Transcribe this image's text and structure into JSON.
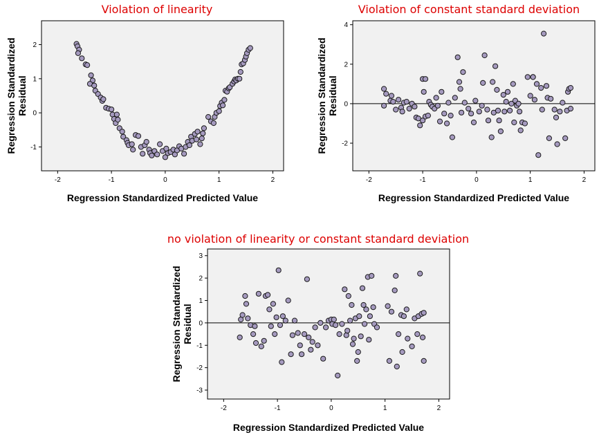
{
  "colors": {
    "title": "#dd0000",
    "marker_fill": "#a59abf",
    "marker_edge": "#1a1a1a",
    "plot_bg": "#f1f1f1"
  },
  "chart_data": [
    {
      "type": "scatter",
      "title": "Violation of linearity",
      "xlabel": "Regression Standardized Predicted Value",
      "ylabel_lines": [
        "Regression Standardized",
        "Residual"
      ],
      "xlim": [
        -2.3,
        2.2
      ],
      "ylim": [
        -1.7,
        2.7
      ],
      "xticks": [
        -2,
        -1,
        0,
        1,
        2
      ],
      "yticks": [
        -1,
        0,
        1,
        2
      ],
      "xtick_labels": [
        "-2",
        "-1",
        "0",
        "1",
        "2"
      ],
      "ytick_labels": [
        "-1",
        "0",
        "1",
        "2"
      ],
      "reference_line_y": null,
      "points": [
        [
          -1.65,
          2.02
        ],
        [
          -1.63,
          1.95
        ],
        [
          -1.6,
          1.85
        ],
        [
          -1.62,
          1.75
        ],
        [
          -1.55,
          1.6
        ],
        [
          -1.48,
          1.42
        ],
        [
          -1.45,
          1.4
        ],
        [
          -1.38,
          1.1
        ],
        [
          -1.35,
          0.95
        ],
        [
          -1.4,
          0.85
        ],
        [
          -1.32,
          0.8
        ],
        [
          -1.3,
          0.65
        ],
        [
          -1.25,
          0.55
        ],
        [
          -1.2,
          0.45
        ],
        [
          -1.17,
          0.35
        ],
        [
          -1.15,
          0.4
        ],
        [
          -1.1,
          0.15
        ],
        [
          -1.05,
          0.12
        ],
        [
          -1.0,
          0.1
        ],
        [
          -0.98,
          -0.05
        ],
        [
          -0.95,
          -0.18
        ],
        [
          -0.92,
          -0.3
        ],
        [
          -0.9,
          -0.05
        ],
        [
          -0.88,
          -0.2
        ],
        [
          -0.85,
          -0.45
        ],
        [
          -0.8,
          -0.55
        ],
        [
          -0.78,
          -0.7
        ],
        [
          -0.72,
          -0.8
        ],
        [
          -0.7,
          -0.88
        ],
        [
          -0.68,
          -0.95
        ],
        [
          -0.62,
          -0.92
        ],
        [
          -0.6,
          -1.08
        ],
        [
          -0.55,
          -0.65
        ],
        [
          -0.5,
          -0.68
        ],
        [
          -0.45,
          -1.0
        ],
        [
          -0.42,
          -1.2
        ],
        [
          -0.38,
          -0.95
        ],
        [
          -0.35,
          -0.85
        ],
        [
          -0.3,
          -1.08
        ],
        [
          -0.28,
          -1.18
        ],
        [
          -0.25,
          -1.25
        ],
        [
          -0.2,
          -1.12
        ],
        [
          -0.15,
          -1.22
        ],
        [
          -0.1,
          -0.92
        ],
        [
          -0.05,
          -1.12
        ],
        [
          0.0,
          -1.3
        ],
        [
          0.02,
          -1.05
        ],
        [
          0.05,
          -1.18
        ],
        [
          0.1,
          -1.15
        ],
        [
          0.15,
          -1.08
        ],
        [
          0.18,
          -1.22
        ],
        [
          0.22,
          -1.1
        ],
        [
          0.26,
          -0.98
        ],
        [
          0.3,
          -1.05
        ],
        [
          0.35,
          -1.2
        ],
        [
          0.38,
          -1.0
        ],
        [
          0.42,
          -0.85
        ],
        [
          0.45,
          -0.95
        ],
        [
          0.48,
          -0.7
        ],
        [
          0.5,
          -0.82
        ],
        [
          0.55,
          -0.62
        ],
        [
          0.58,
          -0.78
        ],
        [
          0.6,
          -0.55
        ],
        [
          0.65,
          -0.92
        ],
        [
          0.68,
          -0.75
        ],
        [
          0.7,
          -0.6
        ],
        [
          0.72,
          -0.45
        ],
        [
          0.8,
          -0.12
        ],
        [
          0.85,
          -0.25
        ],
        [
          0.9,
          -0.3
        ],
        [
          0.92,
          -0.12
        ],
        [
          0.95,
          0.0
        ],
        [
          1.0,
          0.05
        ],
        [
          1.02,
          0.2
        ],
        [
          1.05,
          0.3
        ],
        [
          1.07,
          0.22
        ],
        [
          1.1,
          0.38
        ],
        [
          1.12,
          0.65
        ],
        [
          1.15,
          0.62
        ],
        [
          1.18,
          0.72
        ],
        [
          1.2,
          0.75
        ],
        [
          1.25,
          0.85
        ],
        [
          1.28,
          0.92
        ],
        [
          1.3,
          0.98
        ],
        [
          1.32,
          0.95
        ],
        [
          1.35,
          1.0
        ],
        [
          1.38,
          1.0
        ],
        [
          1.4,
          1.2
        ],
        [
          1.42,
          1.42
        ],
        [
          1.45,
          1.45
        ],
        [
          1.48,
          1.55
        ],
        [
          1.5,
          1.65
        ],
        [
          1.52,
          1.75
        ],
        [
          1.55,
          1.85
        ],
        [
          1.58,
          1.9
        ]
      ]
    },
    {
      "type": "scatter",
      "title": "Violation of constant standard deviation",
      "xlabel": "Regression Standardized Predicted Value",
      "ylabel_lines": [
        "Regression Standardized",
        "Residual"
      ],
      "xlim": [
        -2.3,
        2.2
      ],
      "ylim": [
        -3.4,
        4.2
      ],
      "xticks": [
        -2,
        -1,
        0,
        1,
        2
      ],
      "yticks": [
        -2,
        0,
        2,
        4
      ],
      "xtick_labels": [
        "-2",
        "-1",
        "0",
        "1",
        "2"
      ],
      "ytick_labels": [
        "-2",
        "0",
        "2",
        "4"
      ],
      "reference_line_y": 0,
      "points": [
        [
          -1.72,
          0.75
        ],
        [
          -1.72,
          -0.1
        ],
        [
          -1.68,
          0.5
        ],
        [
          -1.6,
          0.15
        ],
        [
          -1.58,
          0.4
        ],
        [
          -1.55,
          0.1
        ],
        [
          -1.5,
          -0.3
        ],
        [
          -1.45,
          0.2
        ],
        [
          -1.4,
          -0.2
        ],
        [
          -1.38,
          -0.4
        ],
        [
          -1.35,
          0.05
        ],
        [
          -1.3,
          0.1
        ],
        [
          -1.25,
          -0.25
        ],
        [
          -1.2,
          0.0
        ],
        [
          -1.15,
          -0.15
        ],
        [
          -1.12,
          -0.7
        ],
        [
          -1.08,
          -0.75
        ],
        [
          -1.05,
          -1.1
        ],
        [
          -1.0,
          -0.85
        ],
        [
          -1.0,
          1.25
        ],
        [
          -0.98,
          0.6
        ],
        [
          -0.95,
          -0.65
        ],
        [
          -0.95,
          1.25
        ],
        [
          -0.9,
          -0.6
        ],
        [
          -0.88,
          0.1
        ],
        [
          -0.85,
          -0.05
        ],
        [
          -0.82,
          -0.15
        ],
        [
          -0.78,
          -0.25
        ],
        [
          -0.75,
          0.3
        ],
        [
          -0.72,
          -0.1
        ],
        [
          -0.68,
          -0.9
        ],
        [
          -0.65,
          0.6
        ],
        [
          -0.6,
          -0.5
        ],
        [
          -0.55,
          -1.0
        ],
        [
          -0.52,
          0.05
        ],
        [
          -0.48,
          -0.6
        ],
        [
          -0.45,
          -1.7
        ],
        [
          -0.4,
          0.3
        ],
        [
          -0.35,
          2.35
        ],
        [
          -0.32,
          1.1
        ],
        [
          -0.3,
          0.75
        ],
        [
          -0.28,
          -0.45
        ],
        [
          -0.25,
          1.6
        ],
        [
          -0.22,
          0.05
        ],
        [
          -0.15,
          -0.25
        ],
        [
          -0.1,
          -0.5
        ],
        [
          -0.05,
          -0.95
        ],
        [
          -0.02,
          0.15
        ],
        [
          0.05,
          -0.4
        ],
        [
          0.1,
          -0.1
        ],
        [
          0.12,
          1.05
        ],
        [
          0.15,
          2.45
        ],
        [
          0.2,
          -0.3
        ],
        [
          0.22,
          -0.85
        ],
        [
          0.28,
          -1.7
        ],
        [
          0.3,
          1.1
        ],
        [
          0.32,
          -0.45
        ],
        [
          0.35,
          1.9
        ],
        [
          0.38,
          0.7
        ],
        [
          0.4,
          -0.35
        ],
        [
          0.42,
          -0.85
        ],
        [
          0.45,
          -1.4
        ],
        [
          0.5,
          0.45
        ],
        [
          0.52,
          -0.4
        ],
        [
          0.55,
          0.1
        ],
        [
          0.58,
          0.6
        ],
        [
          0.62,
          -0.35
        ],
        [
          0.65,
          0.0
        ],
        [
          0.68,
          1.0
        ],
        [
          0.7,
          -0.95
        ],
        [
          0.72,
          0.15
        ],
        [
          0.75,
          -0.1
        ],
        [
          0.78,
          0.0
        ],
        [
          0.8,
          -0.4
        ],
        [
          0.82,
          -1.35
        ],
        [
          0.85,
          -0.95
        ],
        [
          0.9,
          -1.0
        ],
        [
          0.95,
          1.35
        ],
        [
          1.0,
          0.4
        ],
        [
          1.05,
          1.35
        ],
        [
          1.08,
          0.2
        ],
        [
          1.12,
          1.0
        ],
        [
          1.15,
          -2.6
        ],
        [
          1.2,
          0.8
        ],
        [
          1.22,
          -0.3
        ],
        [
          1.25,
          3.55
        ],
        [
          1.3,
          0.9
        ],
        [
          1.32,
          0.3
        ],
        [
          1.35,
          -1.75
        ],
        [
          1.38,
          0.25
        ],
        [
          1.45,
          -0.3
        ],
        [
          1.48,
          -0.7
        ],
        [
          1.5,
          -2.05
        ],
        [
          1.55,
          -0.4
        ],
        [
          1.6,
          0.05
        ],
        [
          1.65,
          -1.75
        ],
        [
          1.68,
          -0.35
        ],
        [
          1.7,
          0.6
        ],
        [
          1.72,
          0.75
        ],
        [
          1.75,
          0.8
        ],
        [
          1.75,
          -0.25
        ],
        [
          1.05,
          1.35
        ]
      ]
    },
    {
      "type": "scatter",
      "title": "no violation of linearity or constant standard deviation",
      "xlabel": "Regression Standardized Predicted Value",
      "ylabel_lines": [
        "Regression Standardized",
        "Residual"
      ],
      "xlim": [
        -2.3,
        2.2
      ],
      "ylim": [
        -3.4,
        3.3
      ],
      "xticks": [
        -2,
        -1,
        0,
        1,
        2
      ],
      "yticks": [
        -3,
        -2,
        -1,
        0,
        1,
        2,
        3
      ],
      "xtick_labels": [
        "-2",
        "-1",
        "0",
        "1",
        "2"
      ],
      "ytick_labels": [
        "-3",
        "-2",
        "-1",
        "0",
        "1",
        "2",
        "3"
      ],
      "reference_line_y": 0,
      "points": [
        [
          -1.7,
          -0.65
        ],
        [
          -1.68,
          0.15
        ],
        [
          -1.65,
          0.35
        ],
        [
          -1.6,
          1.2
        ],
        [
          -1.58,
          0.85
        ],
        [
          -1.55,
          0.2
        ],
        [
          -1.5,
          -0.1
        ],
        [
          -1.45,
          -0.5
        ],
        [
          -1.42,
          -0.15
        ],
        [
          -1.4,
          -0.9
        ],
        [
          -1.35,
          1.3
        ],
        [
          -1.3,
          -1.05
        ],
        [
          -1.25,
          -0.8
        ],
        [
          -1.22,
          1.2
        ],
        [
          -1.18,
          1.25
        ],
        [
          -1.15,
          0.6
        ],
        [
          -1.12,
          -0.15
        ],
        [
          -1.08,
          0.85
        ],
        [
          -1.05,
          -0.5
        ],
        [
          -1.02,
          0.25
        ],
        [
          -0.98,
          2.35
        ],
        [
          -0.95,
          -0.1
        ],
        [
          -0.92,
          -1.75
        ],
        [
          -0.9,
          0.3
        ],
        [
          -0.85,
          0.1
        ],
        [
          -0.8,
          1.0
        ],
        [
          -0.75,
          -1.4
        ],
        [
          -0.72,
          -0.55
        ],
        [
          -0.68,
          0.1
        ],
        [
          -0.62,
          -0.45
        ],
        [
          -0.58,
          -1.0
        ],
        [
          -0.55,
          -1.4
        ],
        [
          -0.5,
          -0.5
        ],
        [
          -0.45,
          1.95
        ],
        [
          -0.42,
          -0.65
        ],
        [
          -0.38,
          -1.2
        ],
        [
          -0.35,
          -0.85
        ],
        [
          -0.3,
          -0.2
        ],
        [
          -0.25,
          -1.0
        ],
        [
          -0.2,
          0.0
        ],
        [
          -0.15,
          -1.6
        ],
        [
          -0.1,
          -0.2
        ],
        [
          -0.05,
          0.1
        ],
        [
          0.0,
          0.15
        ],
        [
          0.02,
          -0.05
        ],
        [
          0.05,
          0.15
        ],
        [
          0.08,
          -0.1
        ],
        [
          0.12,
          -2.35
        ],
        [
          0.15,
          -0.5
        ],
        [
          0.2,
          -0.05
        ],
        [
          0.25,
          1.5
        ],
        [
          0.28,
          -0.55
        ],
        [
          0.3,
          -0.35
        ],
        [
          0.32,
          1.2
        ],
        [
          0.35,
          0.1
        ],
        [
          0.38,
          0.8
        ],
        [
          0.4,
          -0.95
        ],
        [
          0.42,
          -0.7
        ],
        [
          0.45,
          0.2
        ],
        [
          0.48,
          -1.7
        ],
        [
          0.5,
          -1.3
        ],
        [
          0.52,
          0.3
        ],
        [
          0.55,
          -0.6
        ],
        [
          0.58,
          1.55
        ],
        [
          0.6,
          0.8
        ],
        [
          0.62,
          -0.05
        ],
        [
          0.65,
          0.6
        ],
        [
          0.68,
          2.05
        ],
        [
          0.7,
          -0.75
        ],
        [
          0.72,
          0.3
        ],
        [
          0.75,
          2.1
        ],
        [
          0.78,
          0.7
        ],
        [
          0.8,
          -0.05
        ],
        [
          0.85,
          -0.2
        ],
        [
          1.05,
          0.75
        ],
        [
          1.08,
          -1.7
        ],
        [
          1.12,
          0.5
        ],
        [
          1.18,
          1.45
        ],
        [
          1.2,
          2.1
        ],
        [
          1.22,
          -1.95
        ],
        [
          1.25,
          -0.5
        ],
        [
          1.3,
          0.35
        ],
        [
          1.32,
          -1.3
        ],
        [
          1.35,
          0.3
        ],
        [
          1.4,
          0.6
        ],
        [
          1.42,
          -0.7
        ],
        [
          1.5,
          -1.05
        ],
        [
          1.55,
          0.2
        ],
        [
          1.6,
          -0.5
        ],
        [
          1.62,
          0.3
        ],
        [
          1.65,
          2.2
        ],
        [
          1.68,
          0.4
        ],
        [
          1.7,
          -0.65
        ],
        [
          1.72,
          -1.7
        ],
        [
          1.72,
          0.45
        ]
      ]
    }
  ]
}
